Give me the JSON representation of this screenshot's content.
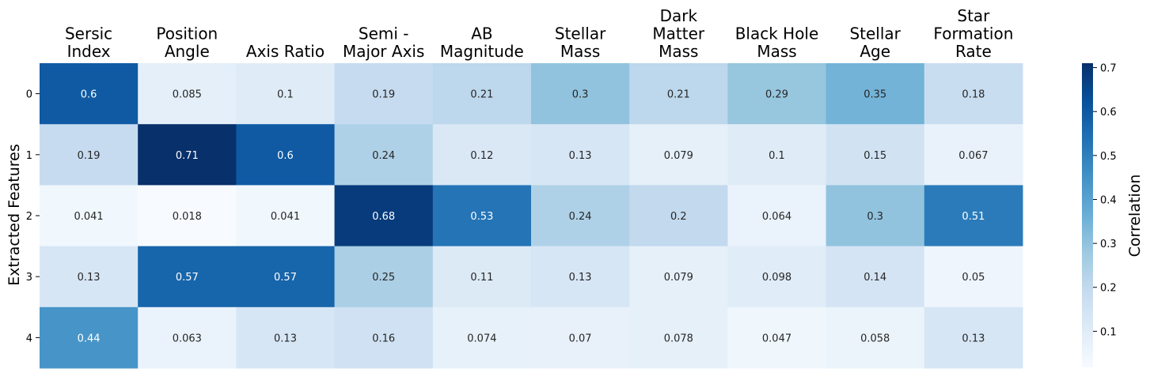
{
  "chart_data": {
    "type": "heatmap",
    "columns": [
      [
        "Sersic",
        "Index"
      ],
      [
        "Position",
        "Angle"
      ],
      [
        "Axis Ratio"
      ],
      [
        "Semi -",
        "Major Axis"
      ],
      [
        "AB",
        "Magnitude"
      ],
      [
        "Stellar",
        "Mass"
      ],
      [
        "Dark",
        "Matter",
        "Mass"
      ],
      [
        "Black Hole",
        "Mass"
      ],
      [
        "Stellar",
        "Age"
      ],
      [
        "Star",
        "Formation",
        "Rate"
      ]
    ],
    "rows": [
      "0",
      "1",
      "2",
      "3",
      "4"
    ],
    "values": [
      [
        0.6,
        0.085,
        0.1,
        0.19,
        0.21,
        0.3,
        0.21,
        0.29,
        0.35,
        0.18
      ],
      [
        0.19,
        0.71,
        0.6,
        0.24,
        0.12,
        0.13,
        0.079,
        0.1,
        0.15,
        0.067
      ],
      [
        0.041,
        0.018,
        0.041,
        0.68,
        0.53,
        0.24,
        0.2,
        0.064,
        0.3,
        0.51
      ],
      [
        0.13,
        0.57,
        0.57,
        0.25,
        0.11,
        0.13,
        0.079,
        0.098,
        0.14,
        0.05
      ],
      [
        0.44,
        0.063,
        0.13,
        0.16,
        0.074,
        0.07,
        0.078,
        0.047,
        0.058,
        0.13
      ]
    ],
    "ylabel": "Extracted Features",
    "colorbar_label": "Correlation",
    "colorbar_ticks": [
      0.1,
      0.2,
      0.3,
      0.4,
      0.5,
      0.6,
      0.7
    ],
    "color_range": [
      0.018,
      0.71
    ],
    "colormap": "Blues",
    "colormap_stops": [
      "#f7fbff",
      "#deebf7",
      "#c6dbef",
      "#9ecae1",
      "#6baed6",
      "#4292c6",
      "#2171b5",
      "#08519c",
      "#08306b"
    ]
  }
}
